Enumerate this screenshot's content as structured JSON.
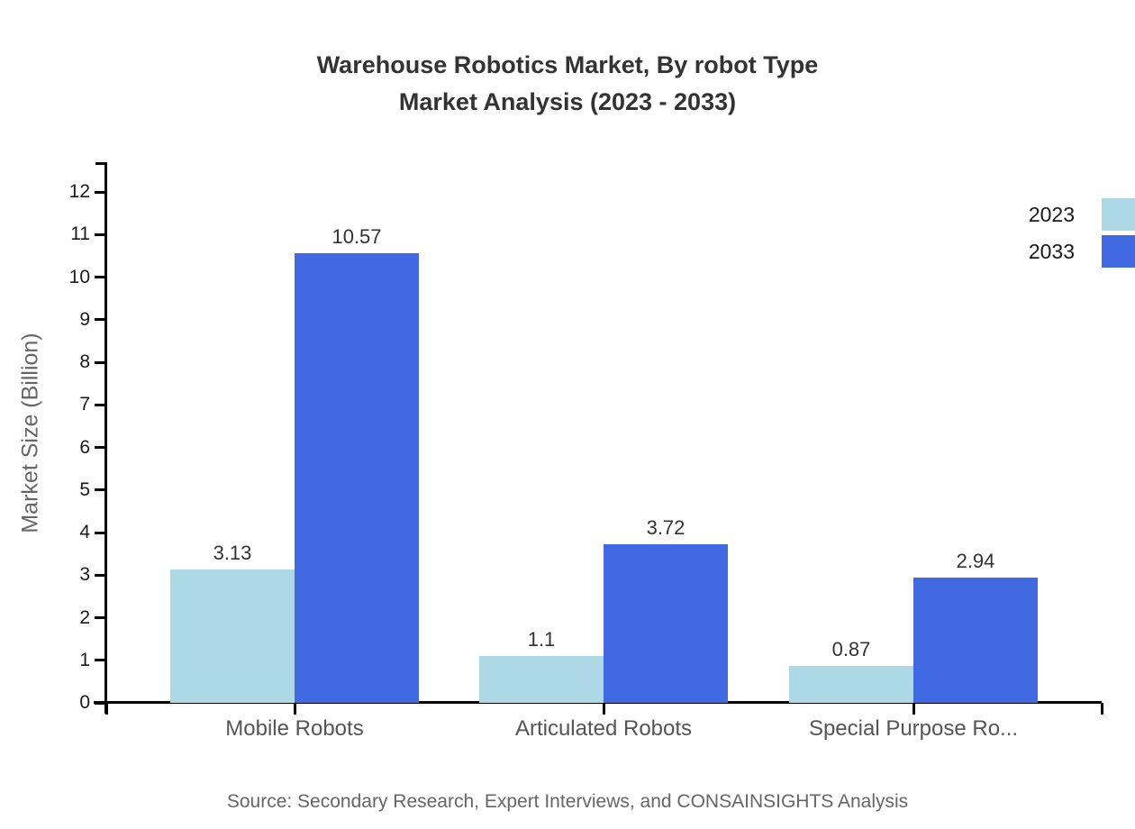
{
  "title": {
    "line1": "Warehouse Robotics Market, By robot Type",
    "line2": "Market Analysis (2023 - 2033)"
  },
  "source": "Source: Secondary Research, Expert Interviews, and CONSAINSIGHTS Analysis",
  "legend": {
    "items": [
      {
        "label": "2023",
        "color": "#ADD8E6"
      },
      {
        "label": "2033",
        "color": "#4169E1"
      }
    ]
  },
  "chart_data": {
    "type": "bar",
    "title": "Warehouse Robotics Market, By robot Type Market Analysis (2023 - 2033)",
    "categories": [
      "Mobile Robots",
      "Articulated Robots",
      "Special Purpose Ro..."
    ],
    "series": [
      {
        "name": "2023",
        "color": "#ADD8E6",
        "values": [
          3.13,
          1.1,
          0.87
        ],
        "labels": [
          "3.13",
          "1.1",
          "0.87"
        ]
      },
      {
        "name": "2033",
        "color": "#4169E1",
        "values": [
          10.57,
          3.72,
          2.94
        ],
        "labels": [
          "10.57",
          "3.72",
          "2.94"
        ]
      }
    ],
    "xlabel": "",
    "ylabel": "Market Size (Billion)",
    "ylim": [
      0,
      12.7
    ],
    "yticks": [
      0,
      1,
      2,
      3,
      4,
      5,
      6,
      7,
      8,
      9,
      10,
      11,
      12
    ],
    "grid": false,
    "legend_position": "top-right"
  }
}
